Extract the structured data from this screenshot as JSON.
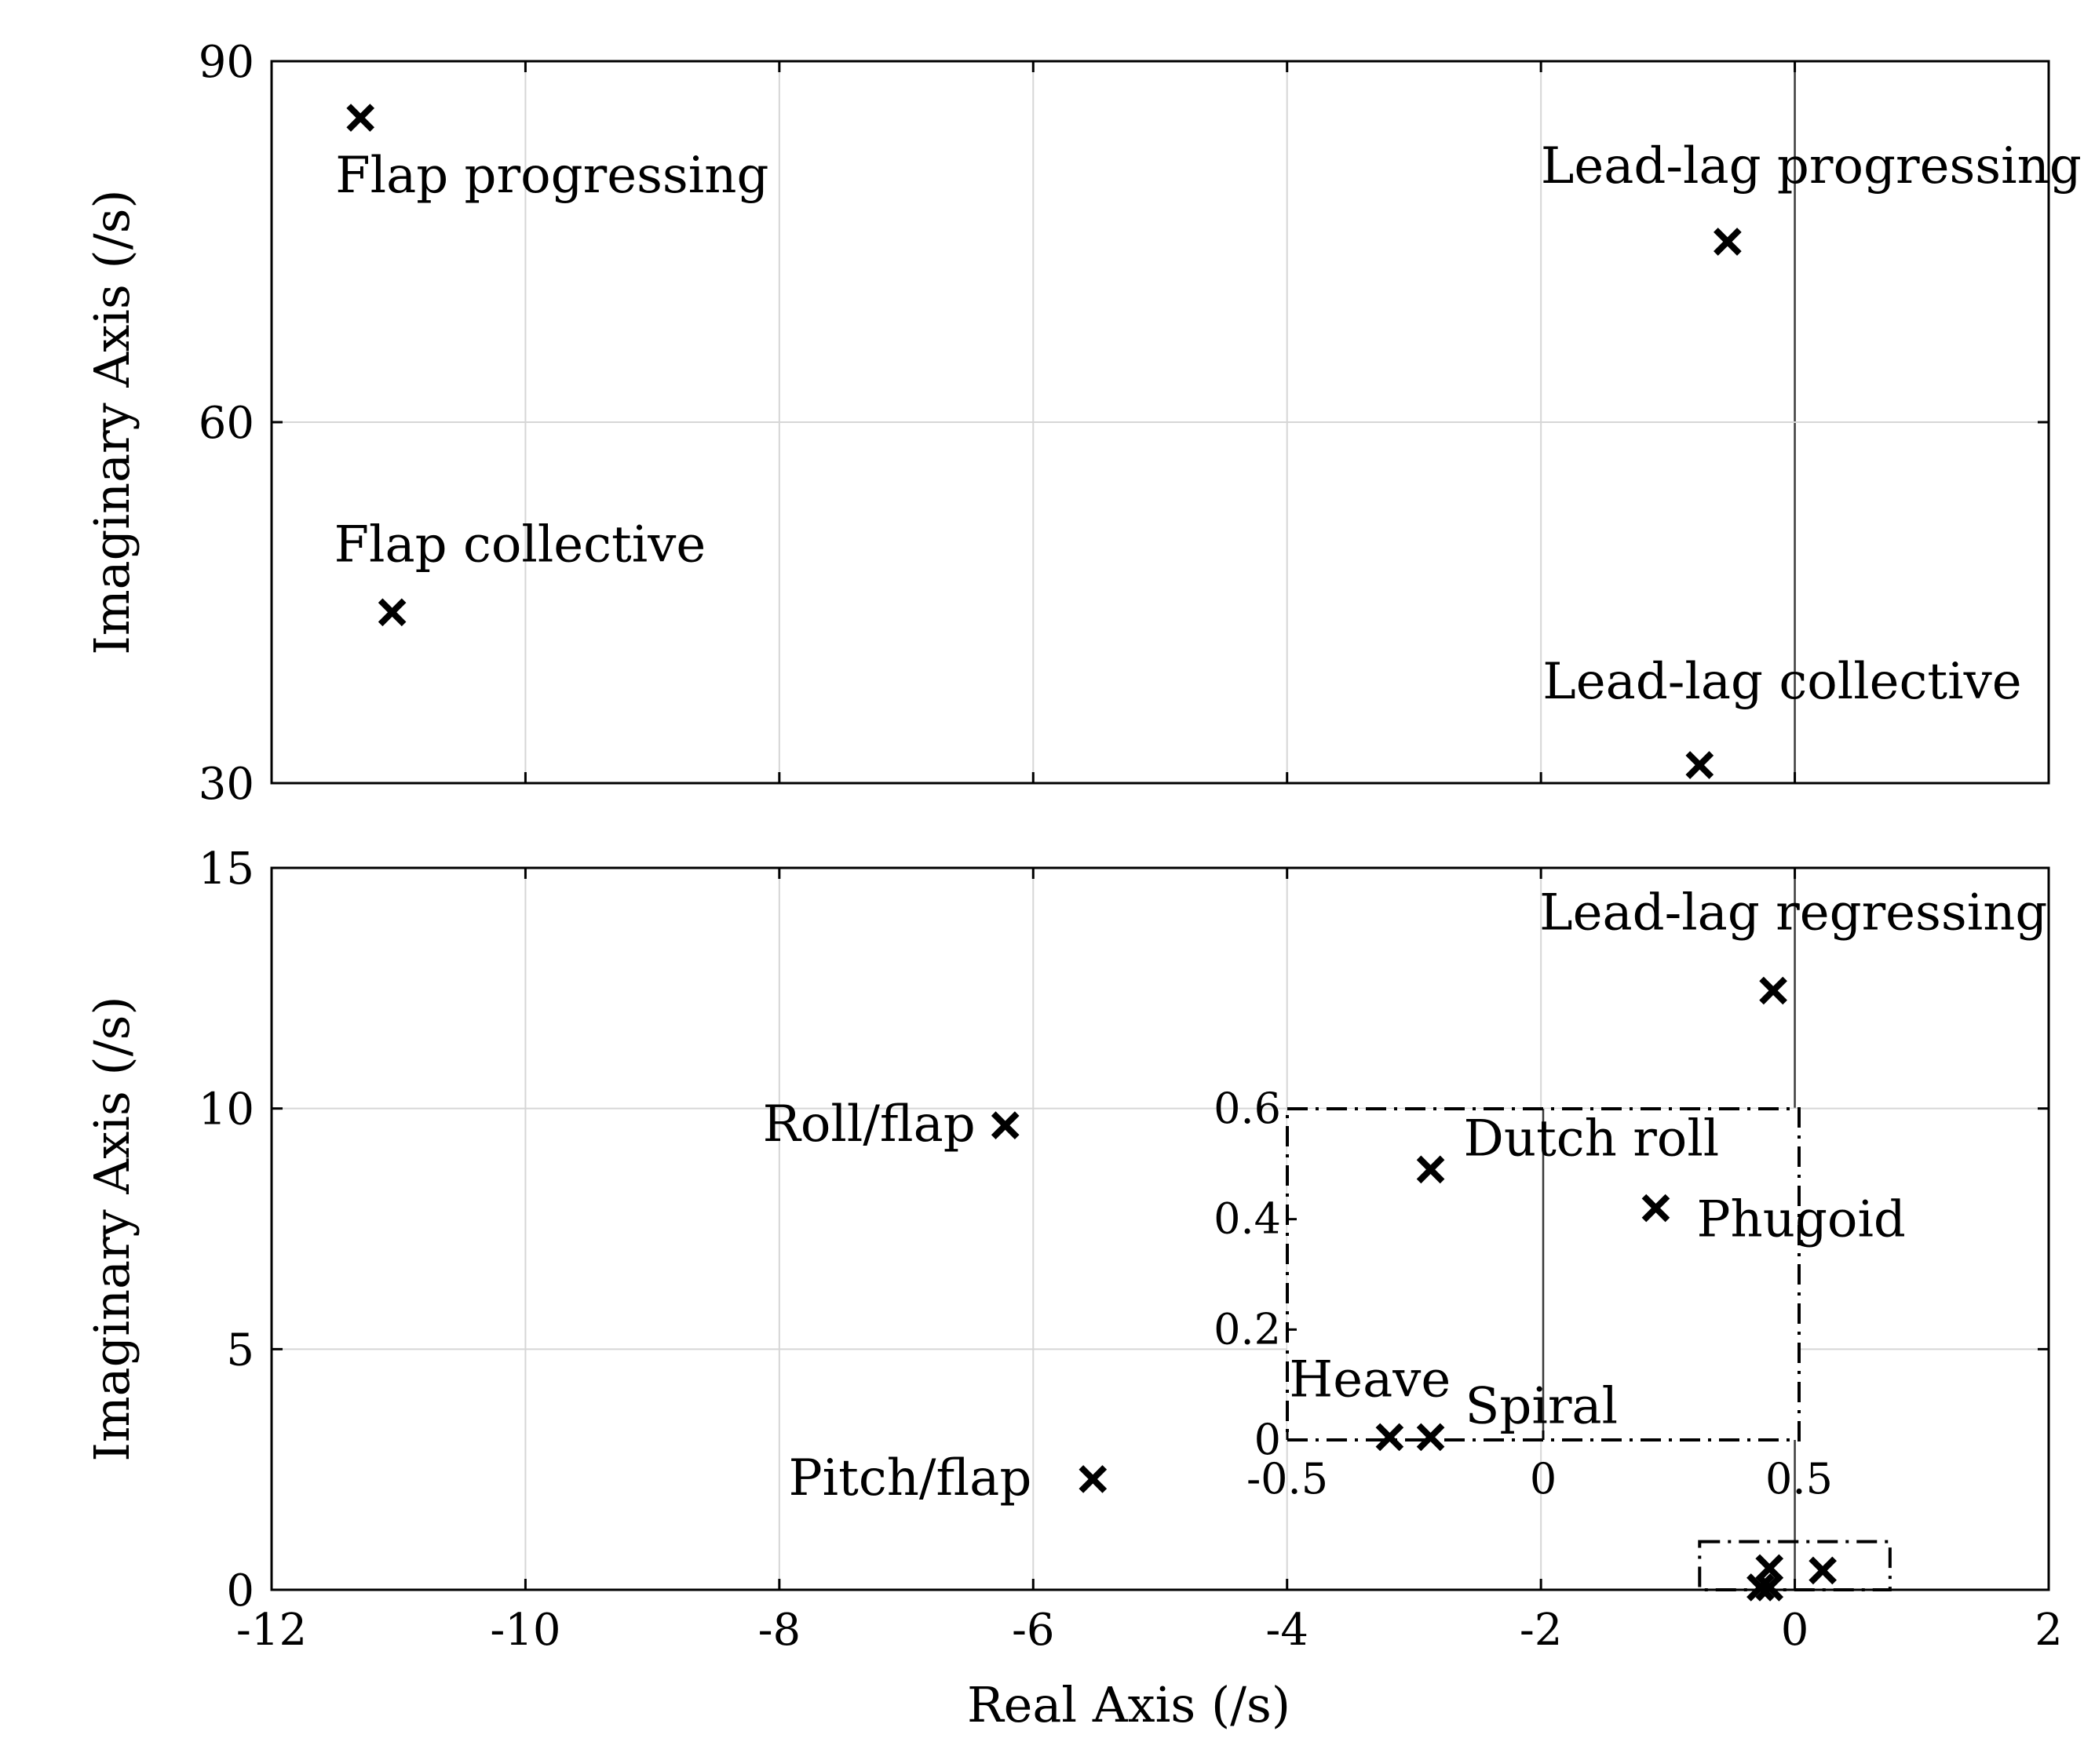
{
  "chart_data": [
    {
      "type": "scatter",
      "panel": "top",
      "xlim": [
        -12,
        2
      ],
      "ylim": [
        30,
        90
      ],
      "xticks": [
        -12,
        -10,
        -8,
        -6,
        -4,
        -2,
        0,
        2
      ],
      "yticks": [
        30,
        60,
        90
      ],
      "ytick_labels": [
        "30",
        "60",
        "90"
      ],
      "xlabel": "",
      "ylabel": "Imaginary Axis (/s)",
      "grid": true,
      "marker": "x",
      "points": [
        {
          "label": "Flap progressing",
          "x": -11.3,
          "y": 85.3
        },
        {
          "label": "Flap collective",
          "x": -11.05,
          "y": 44.2
        },
        {
          "label": "Lead-lag progressing",
          "x": -0.53,
          "y": 75.0
        },
        {
          "label": "Lead-lag collective",
          "x": -0.75,
          "y": 31.5
        }
      ]
    },
    {
      "type": "scatter",
      "panel": "bottom",
      "xlim": [
        -12,
        2
      ],
      "ylim": [
        0,
        15
      ],
      "xticks": [
        -12,
        -10,
        -8,
        -6,
        -4,
        -2,
        0,
        2
      ],
      "xtick_labels": [
        "-12",
        "-10",
        "-8",
        "-6",
        "-4",
        "-2",
        "0",
        "2"
      ],
      "yticks": [
        0,
        5,
        10,
        15
      ],
      "ytick_labels": [
        "0",
        "5",
        "10",
        "15"
      ],
      "xlabel": "Real Axis (/s)",
      "ylabel": "Imaginary Axis (/s)",
      "grid": true,
      "marker": "x",
      "points": [
        {
          "label": "Lead-lag regressing",
          "x": -0.17,
          "y": 12.45
        },
        {
          "label": "Roll/flap",
          "x": -6.22,
          "y": 9.65
        },
        {
          "label": "Pitch/flap",
          "x": -5.53,
          "y": 2.3
        },
        {
          "label": "",
          "x": -0.2,
          "y": 0.45
        },
        {
          "label": "",
          "x": 0.22,
          "y": 0.4
        },
        {
          "label": "",
          "x": -0.27,
          "y": 0.05
        },
        {
          "label": "",
          "x": -0.2,
          "y": 0.05
        }
      ],
      "zoom_box": {
        "xlim": [
          -0.75,
          0.75
        ],
        "ylim": [
          0,
          1.0
        ],
        "style": "dash-dot"
      }
    },
    {
      "type": "scatter",
      "panel": "inset",
      "xlim": [
        -0.5,
        0.5
      ],
      "ylim": [
        0,
        0.6
      ],
      "xticks": [
        -0.5,
        0,
        0.5
      ],
      "xtick_labels": [
        "-0.5",
        "0",
        "0.5"
      ],
      "yticks": [
        0,
        0.2,
        0.4,
        0.6
      ],
      "ytick_labels": [
        "0",
        "0.2",
        "0.4",
        "0.6"
      ],
      "border_style": "dash-dot",
      "marker": "x",
      "points": [
        {
          "label": "Dutch roll",
          "x": -0.22,
          "y": 0.49
        },
        {
          "label": "Phugoid",
          "x": 0.22,
          "y": 0.42
        },
        {
          "label": "Heave",
          "x": -0.3,
          "y": 0.005
        },
        {
          "label": "Spiral",
          "x": -0.22,
          "y": 0.005
        }
      ]
    }
  ]
}
